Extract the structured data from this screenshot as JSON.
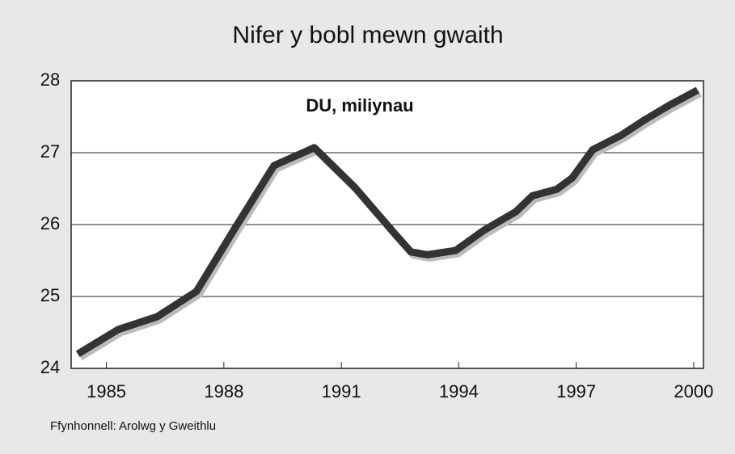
{
  "chart_data": {
    "type": "line",
    "title": "Nifer y bobl mewn gwaith",
    "annotation": "DU, miliynau",
    "source": "Ffynhonnell: Arolwg y Gweithlu",
    "x": [
      1984.27,
      1985.3,
      1986.3,
      1987.3,
      1988.25,
      1989.28,
      1990.31,
      1991.34,
      1992.37,
      1992.78,
      1993.2,
      1993.92,
      1994.64,
      1995.46,
      1995.88,
      1996.5,
      1996.9,
      1997.42,
      1998.14,
      1998.76,
      1999.38,
      2000.1
    ],
    "series": [
      {
        "color": "#333333",
        "values": [
          24.2,
          24.54,
          24.72,
          25.07,
          25.92,
          26.82,
          27.07,
          26.52,
          25.87,
          25.62,
          25.58,
          25.64,
          25.92,
          26.18,
          26.4,
          26.49,
          26.65,
          27.04,
          27.24,
          27.46,
          27.66,
          27.87
        ]
      }
    ],
    "xlim": [
      1984.1,
      2000.25
    ],
    "xticks": [
      1985,
      1988,
      1991,
      1994,
      1997,
      2000
    ],
    "ylim": [
      24,
      28
    ],
    "yticks": [
      24,
      25,
      26,
      27,
      28
    ],
    "grid": true
  }
}
